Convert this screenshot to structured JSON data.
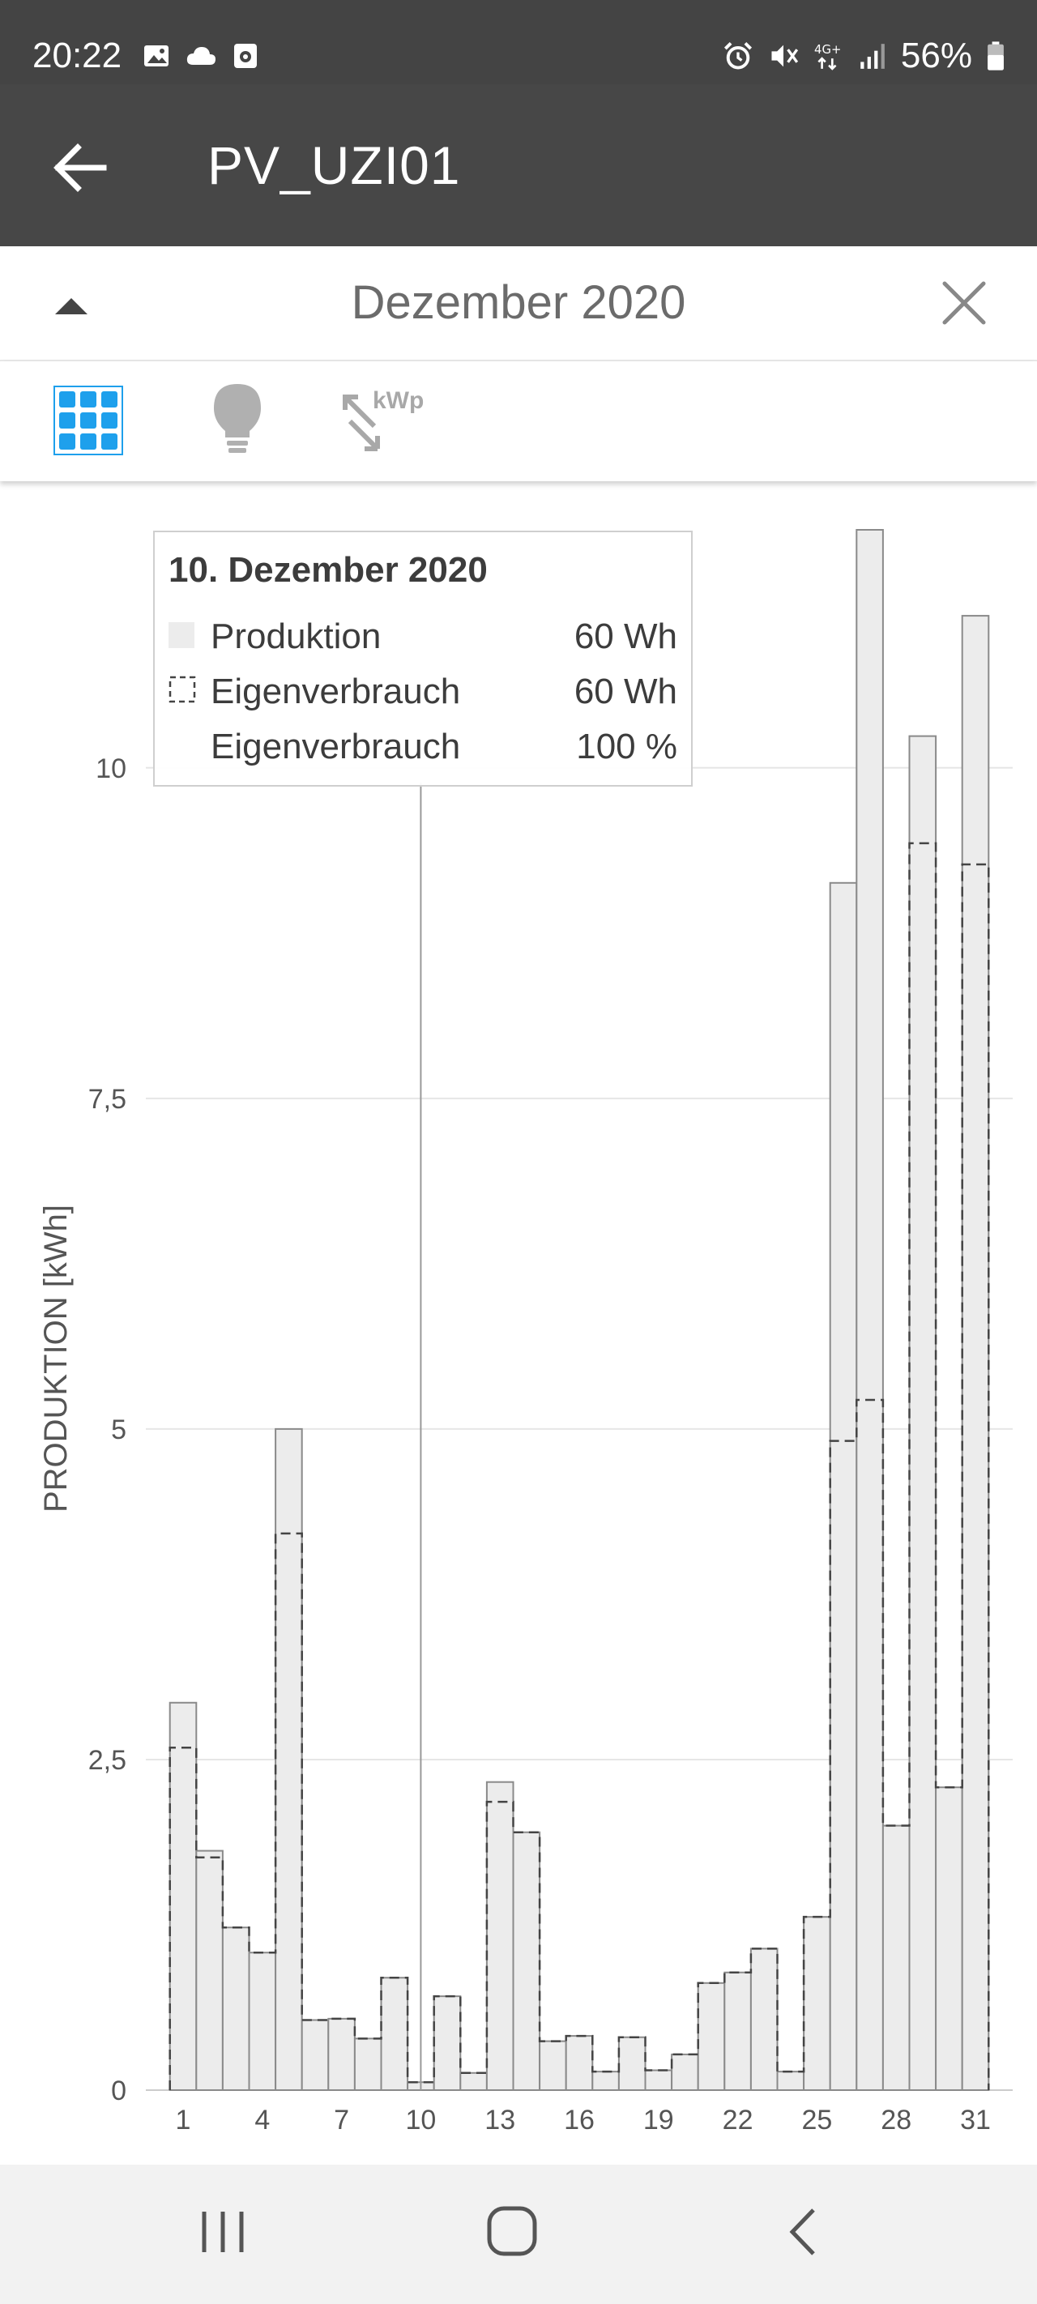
{
  "status_bar": {
    "time": "20:22",
    "battery": "56%",
    "network": "4G+",
    "icons": [
      "gallery-icon",
      "cloud-icon",
      "screen-record-icon",
      "alarm-icon",
      "mute-icon",
      "network-4g-icon",
      "signal-icon",
      "battery-icon"
    ]
  },
  "app_bar": {
    "title": "PV_UZI01",
    "back_icon": "arrow-left-icon"
  },
  "period": {
    "label": "Dezember 2020",
    "collapse_icon": "caret-up-icon",
    "close_icon": "close-icon"
  },
  "toolbar": {
    "views": [
      {
        "icon": "solar-panel-icon",
        "active": true
      },
      {
        "icon": "lightbulb-icon",
        "active": false
      },
      {
        "icon": "kwp-scale-icon",
        "label": "kWp",
        "active": false
      }
    ]
  },
  "colors": {
    "accent": "#1ea0ec",
    "bar_fill": "#ececec",
    "bar_stroke": "#8a8a8a",
    "dashed_stroke": "#444444",
    "text": "#555555"
  },
  "chart_data": {
    "type": "bar",
    "title": "",
    "ylabel": "PRODUKTION [kWh]",
    "xlabel": "",
    "ylim": [
      0,
      11.8
    ],
    "yticks": [
      0,
      2.5,
      5,
      7.5,
      10
    ],
    "ytick_labels": [
      "0",
      "2,5",
      "5",
      "7,5",
      "10"
    ],
    "xtick_labels": [
      "1",
      "4",
      "7",
      "10",
      "13",
      "16",
      "19",
      "22",
      "25",
      "28",
      "31"
    ],
    "categories": [
      1,
      2,
      3,
      4,
      5,
      6,
      7,
      8,
      9,
      10,
      11,
      12,
      13,
      14,
      15,
      16,
      17,
      18,
      19,
      20,
      21,
      22,
      23,
      24,
      25,
      26,
      27,
      28,
      29,
      30,
      31
    ],
    "grid": true,
    "series": [
      {
        "name": "Produktion",
        "style": "filled",
        "values": [
          2.93,
          1.81,
          1.23,
          1.04,
          5.0,
          0.53,
          0.54,
          0.39,
          0.85,
          0.06,
          0.71,
          0.13,
          2.33,
          1.95,
          0.37,
          0.41,
          0.14,
          0.4,
          0.15,
          0.27,
          0.81,
          0.89,
          1.07,
          0.14,
          1.31,
          9.13,
          11.8,
          2.0,
          10.24,
          2.29,
          11.15
        ]
      },
      {
        "name": "Eigenverbrauch",
        "style": "dashed",
        "values": [
          2.59,
          1.76,
          1.23,
          1.04,
          4.21,
          0.53,
          0.54,
          0.39,
          0.85,
          0.06,
          0.71,
          0.13,
          2.18,
          1.95,
          0.37,
          0.41,
          0.14,
          0.4,
          0.15,
          0.27,
          0.81,
          0.89,
          1.07,
          0.14,
          1.31,
          4.91,
          5.22,
          2.0,
          9.43,
          2.29,
          9.27
        ]
      }
    ],
    "tooltip": {
      "title": "10. Dezember 2020",
      "rows": [
        {
          "label": "Produktion",
          "value": "60 Wh"
        },
        {
          "label": "Eigenverbrauch",
          "value": "60 Wh"
        },
        {
          "label": "Eigenverbrauch",
          "value": "100 %"
        }
      ],
      "highlight_day": 10
    }
  },
  "nav_bar": {
    "icons": [
      "recent-apps-icon",
      "home-icon",
      "back-chevron-icon"
    ]
  }
}
